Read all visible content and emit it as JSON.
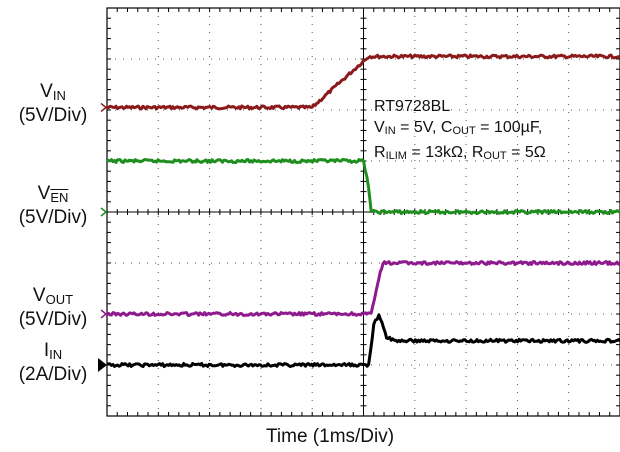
{
  "chart_data": {
    "type": "line",
    "xlabel": "Time (1ms/Div)",
    "x_unit": "ms",
    "xlim": [
      -5,
      5
    ],
    "ylim_div": [
      -4,
      4
    ],
    "grid": true,
    "annotation": {
      "device": "RT9728BL",
      "line2": {
        "a_main": "V",
        "a_sub": "IN",
        "a_rest": " = 5V, C",
        "b_sub": "OUT",
        "b_rest": " = 100µF,"
      },
      "line3": {
        "a_main": "R",
        "a_sub": "ILIM",
        "a_rest": " = 13kΩ, R",
        "b_sub": "OUT",
        "b_rest": " = 5Ω"
      }
    },
    "series": [
      {
        "name": "V_IN",
        "label_main": "V",
        "label_sub": "IN",
        "scale": "(5V/Div)",
        "color": "#8b1a1a",
        "ground_div": 2.05,
        "x": [
          -5,
          -1.0,
          0.1,
          5
        ],
        "y": [
          0,
          0,
          5,
          5
        ]
      },
      {
        "name": "V_EN",
        "label_main": "V",
        "label_over": "EN",
        "scale": "(5V/Div)",
        "color": "#1e8f1e",
        "ground_div": 0,
        "x": [
          -5,
          0.0,
          0.1,
          0.15,
          5
        ],
        "y": [
          5,
          5,
          2.5,
          0,
          0
        ]
      },
      {
        "name": "V_OUT",
        "label_main": "V",
        "label_sub": "OUT",
        "scale": "(5V/Div)",
        "color": "#8e1a8e",
        "ground_div": -2,
        "x": [
          -5,
          0.15,
          0.3,
          0.38,
          5
        ],
        "y": [
          0,
          0,
          3.5,
          5,
          5
        ]
      },
      {
        "name": "I_IN",
        "label_main": "I",
        "label_sub": "IN",
        "scale": "(2A/Div)",
        "color": "#000000",
        "ground_div": -3,
        "x": [
          -5,
          0.1,
          0.2,
          0.3,
          0.45,
          0.6,
          5
        ],
        "y": [
          0,
          0,
          1.6,
          1.95,
          1.1,
          0.95,
          0.95
        ]
      }
    ]
  }
}
